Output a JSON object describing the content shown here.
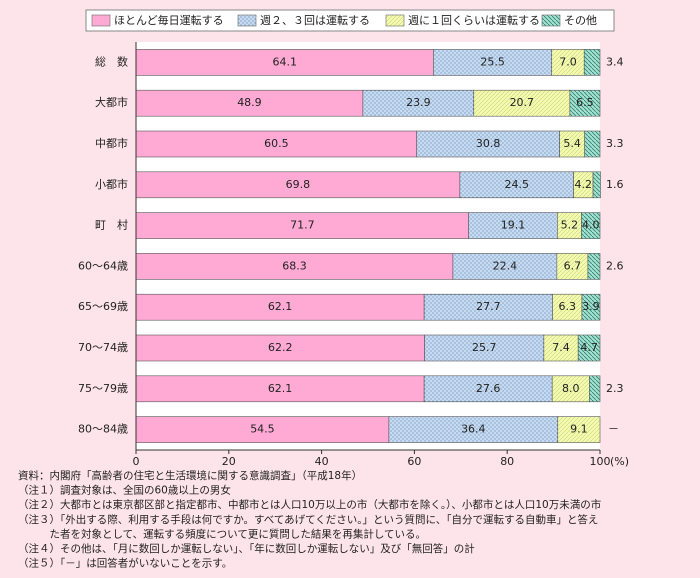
{
  "chart_data": {
    "type": "stacked-bar-horizontal",
    "categories": [
      "総　数",
      "大都市",
      "中都市",
      "小都市",
      "町　村",
      "60〜64歳",
      "65〜69歳",
      "70〜74歳",
      "75〜79歳",
      "80〜84歳"
    ],
    "series": [
      {
        "name": "ほとんど毎日運転する",
        "color": "#ffaad4",
        "values": [
          64.1,
          48.9,
          60.5,
          69.8,
          71.7,
          68.3,
          62.1,
          62.2,
          62.1,
          54.5
        ],
        "value_labels": [
          "64.1",
          "48.9",
          "60.5",
          "69.8",
          "71.7",
          "68.3",
          "62.1",
          "62.2",
          "62.1",
          "54.5"
        ]
      },
      {
        "name": "週２、３回は運転する",
        "color": "#c8dcf0",
        "values": [
          25.5,
          23.9,
          30.8,
          24.5,
          19.1,
          22.4,
          27.7,
          25.7,
          27.6,
          36.4
        ],
        "value_labels": [
          "25.5",
          "23.9",
          "30.8",
          "24.5",
          "19.1",
          "22.4",
          "27.7",
          "25.7",
          "27.6",
          "36.4"
        ]
      },
      {
        "name": "週に１回くらいは運転する",
        "color": "#f4f9b0",
        "values": [
          7.0,
          20.7,
          5.4,
          4.2,
          5.2,
          6.7,
          6.3,
          7.4,
          8.0,
          9.1
        ],
        "value_labels": [
          "7.0",
          "20.7",
          "5.4",
          "4.2",
          "5.2",
          "6.7",
          "6.3",
          "7.4",
          "8.0",
          "9.1"
        ]
      },
      {
        "name": "その他",
        "color": "#a8e0d0",
        "values": [
          3.4,
          6.5,
          3.3,
          1.6,
          4.0,
          2.6,
          3.9,
          4.7,
          2.3,
          null
        ],
        "value_labels": [
          "3.4",
          "6.5",
          "3.3",
          "1.6",
          "4.0",
          "2.6",
          "3.9",
          "4.7",
          "2.3",
          "－"
        ]
      }
    ],
    "xlim": [
      0,
      100
    ],
    "xticks": [
      0,
      20,
      40,
      60,
      80,
      100
    ],
    "xlabel": "(%)",
    "grid": false
  },
  "notes": [
    "資料：内閣府「高齢者の住宅と生活環境に関する意識調査」（平成18年）",
    "（注１）調査対象は、全国の60歳以上の男女",
    "（注２）大都市とは東京都区部と指定都市、中都市とは人口10万以上の市（大都市を除く。）、小都市とは人口10万未満の市",
    "（注３）「外出する際、利用する手段は何ですか。すべてあげてください。」という質問に、「自分で運転する自動車」と答え",
    "　　　た者を対象として、運転する頻度について更に質問した結果を再集計している。",
    "（注４）その他は、「月に数回しか運転しない」、「年に数回しか運転しない」及び「無回答」の計",
    "（注５）「－」は回答者がいないことを示す。"
  ]
}
